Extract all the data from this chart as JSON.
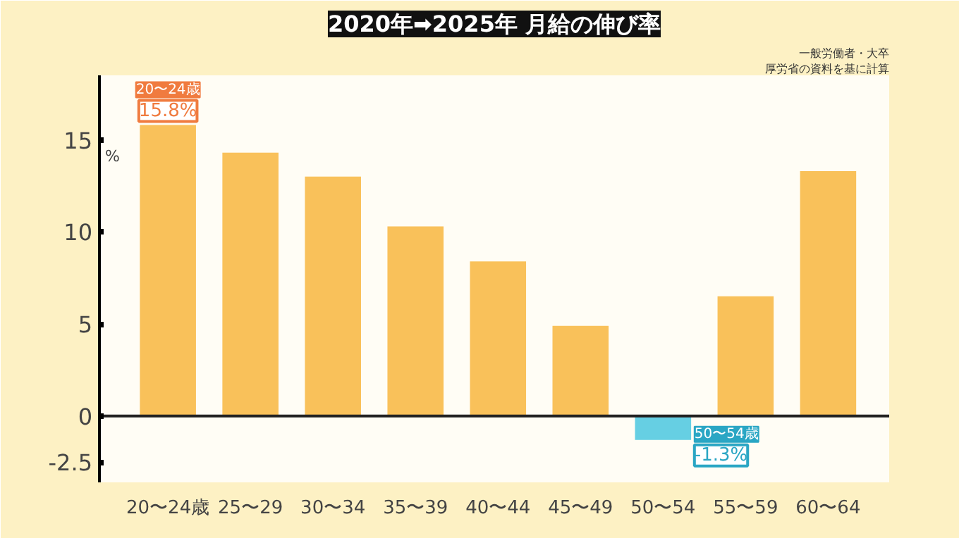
{
  "chart_data": {
    "type": "bar",
    "title": "2020年➡2025年 月給の伸び率",
    "ylabel": "%",
    "categories": [
      "20〜24歳",
      "25〜29",
      "30〜34",
      "35〜39",
      "40〜44",
      "45〜49",
      "50〜54",
      "55〜59",
      "60〜64"
    ],
    "values": [
      15.8,
      14.3,
      13.0,
      10.3,
      8.4,
      4.9,
      -1.3,
      6.5,
      13.3
    ],
    "colors": [
      "#f9c15a",
      "#f9c15a",
      "#f9c15a",
      "#f9c15a",
      "#f9c15a",
      "#f9c15a",
      "#66cfe3",
      "#f9c15a",
      "#f9c15a"
    ],
    "ylim": [
      -3.6,
      18.5
    ],
    "yticks": [
      15,
      10,
      5,
      0,
      -2.5
    ],
    "annotations": [
      {
        "text": "20〜24歳\n15.8%",
        "x": "20〜24歳",
        "y": 15.8
      },
      {
        "text": "50〜54歳\n-1.3%",
        "x": "50〜54",
        "y": -1.3
      },
      "一般労働者・大卒",
      "厚労省の資料を基に計算"
    ]
  }
}
